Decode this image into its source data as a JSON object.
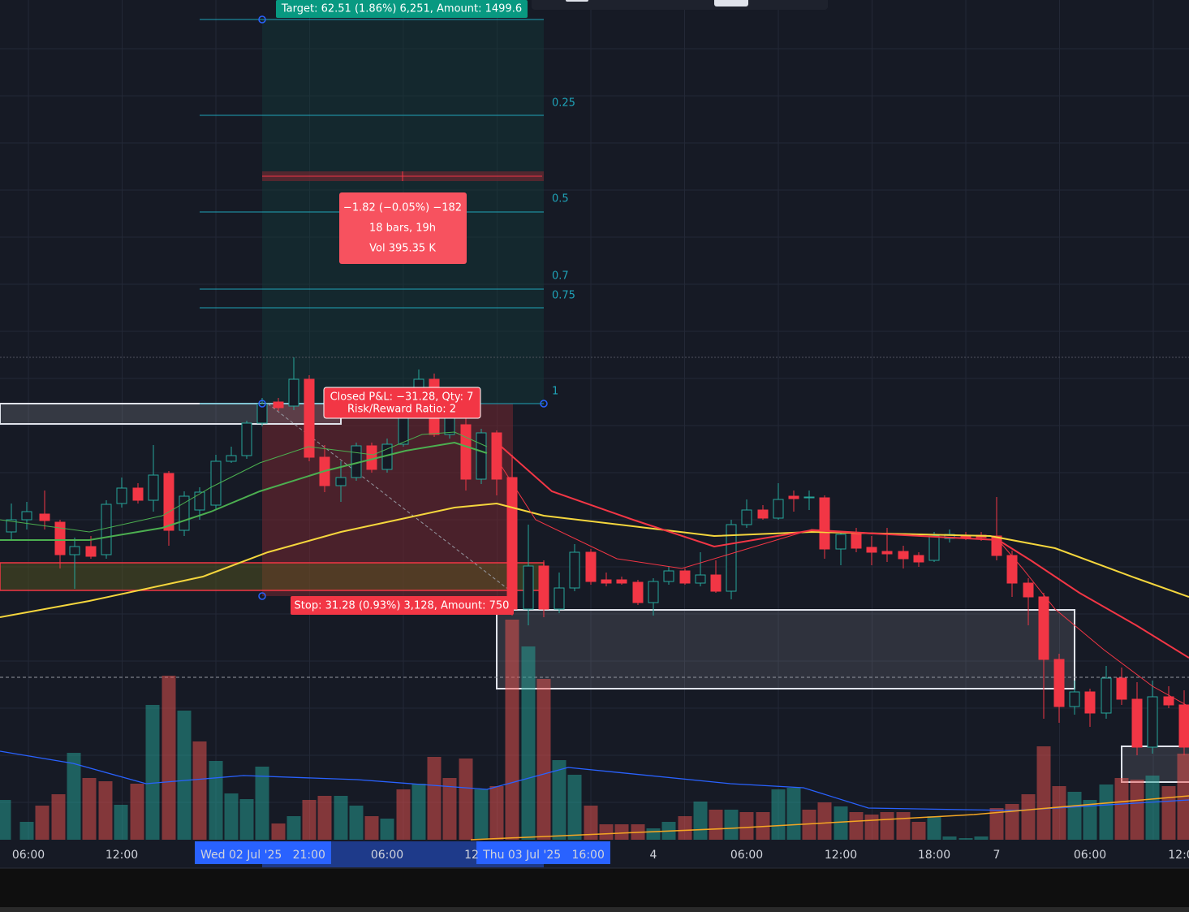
{
  "position_tool": {
    "target": "Target: 62.51 (1.86%) 6,251, Amount: 1499.6",
    "stop": "Stop: 31.28 (0.93%) 3,128, Amount: 750",
    "closed": [
      "Closed P&L: −31.28, Qty: 7",
      "Risk/Reward Ratio: 2"
    ]
  },
  "fib_levels": [
    "0.25",
    "0.5",
    "0.7",
    "0.75",
    "1"
  ],
  "measure": [
    "−1.82 (−0.05%) −182",
    "18 bars, 19h",
    "Vol 395.35 K"
  ],
  "time_axis": [
    "06:00",
    "12:00",
    "Wed 02 Jul '25   21:00",
    "06:00",
    "12",
    "Thu 03 Jul '25   16:00",
    "4",
    "06:00",
    "12:00",
    "18:00",
    "7",
    "06:00",
    "12:0"
  ]
}
